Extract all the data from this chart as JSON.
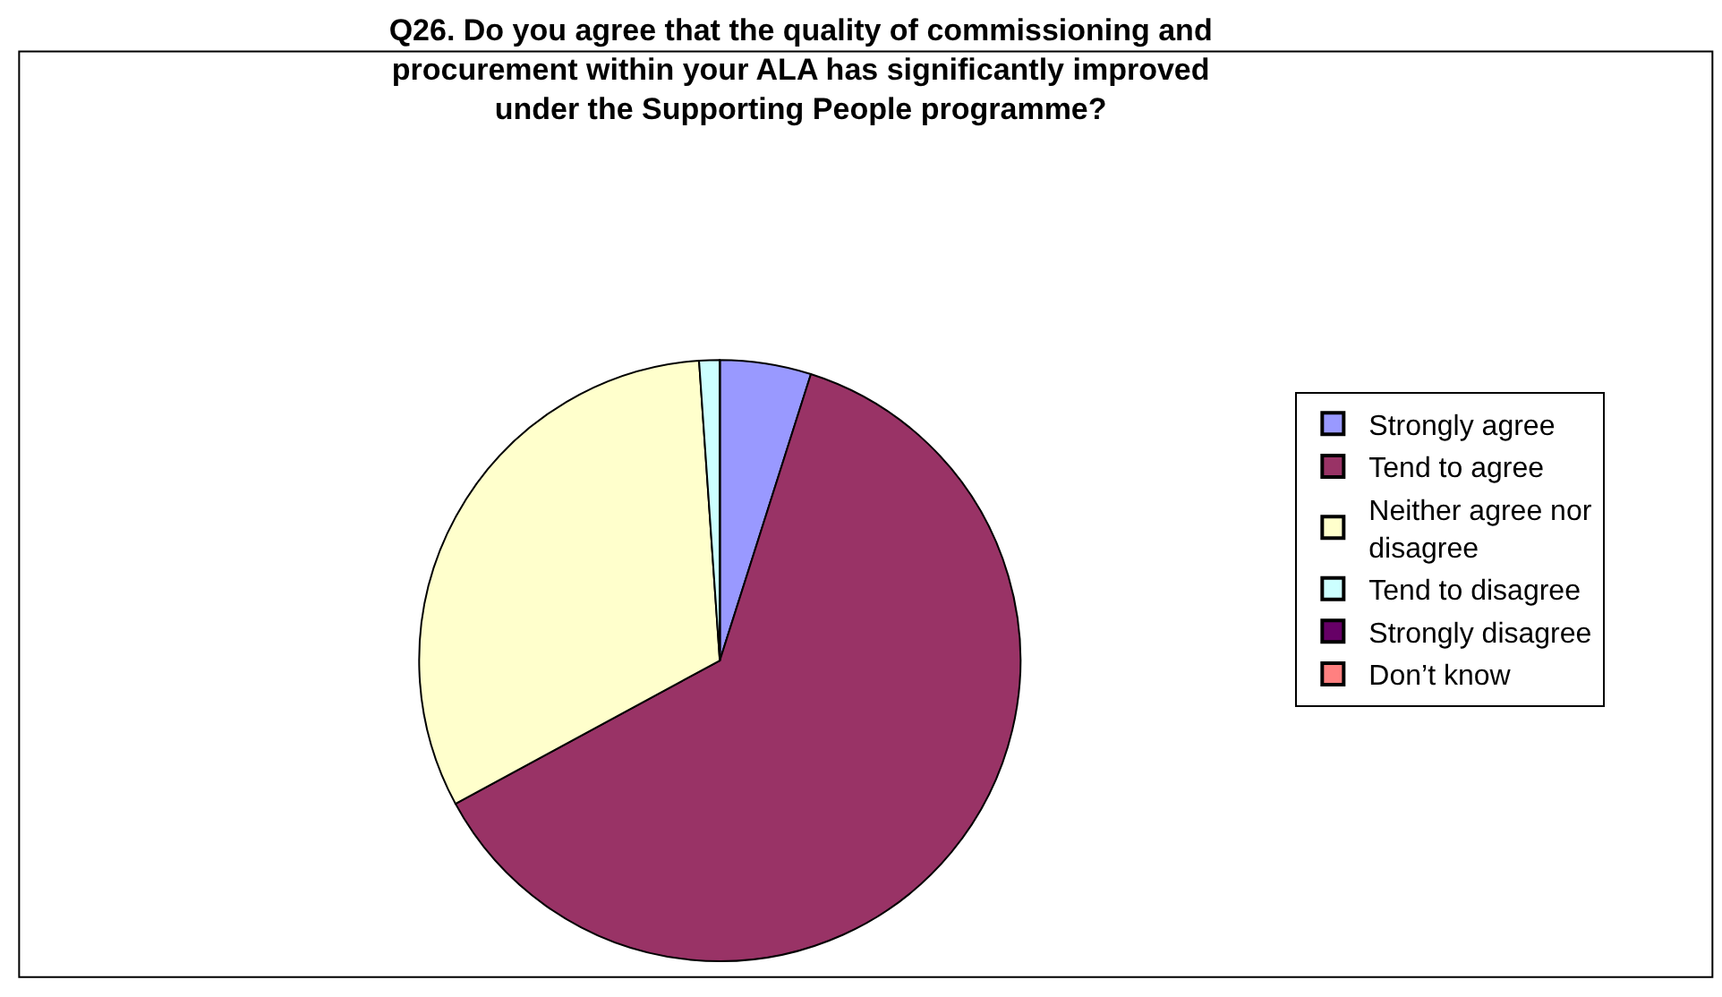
{
  "chart_data": {
    "type": "pie",
    "title": "Q26. Do you agree that the quality of commissioning and procurement within your ALA has significantly improved under the Supporting People programme?",
    "categories": [
      "Strongly agree",
      "Tend to agree",
      "Neither agree nor disagree",
      "Tend to disagree",
      "Strongly disagree",
      "Don’t know"
    ],
    "values": [
      4.9,
      62.2,
      31.8,
      1.1,
      0,
      0
    ],
    "colors": [
      "#9999ff",
      "#993366",
      "#ffffcc",
      "#ccffff",
      "#660066",
      "#ff8080"
    ],
    "legend": "right"
  }
}
